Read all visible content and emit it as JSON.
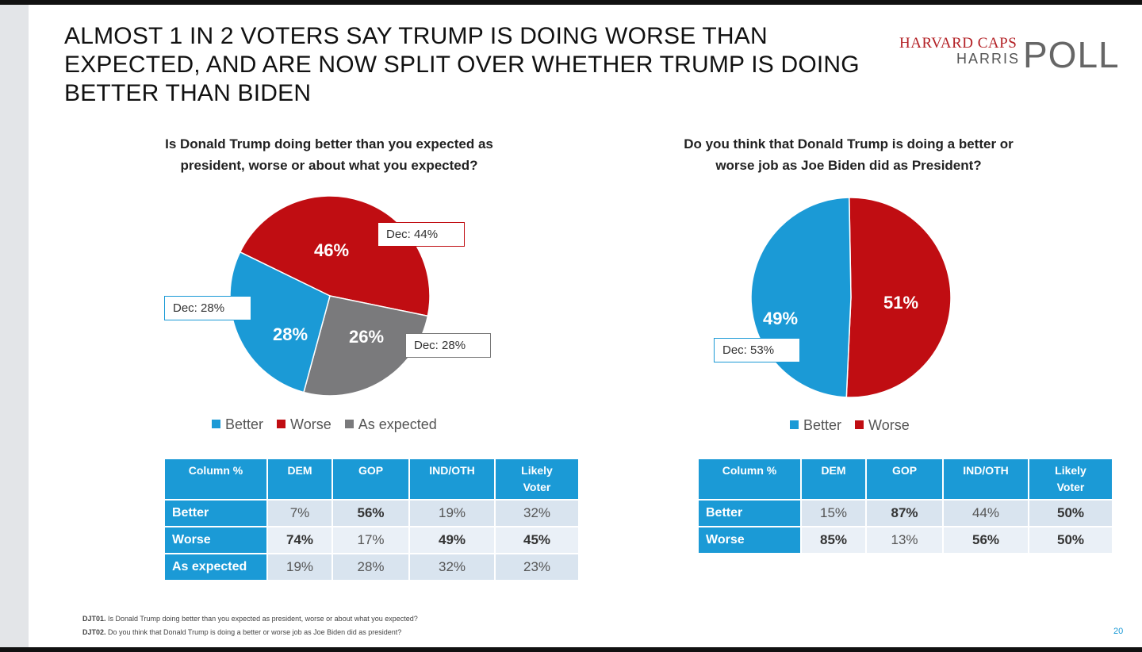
{
  "title_lines": [
    "ALMOST 1 IN 2 VOTERS SAY TRUMP IS DOING WORSE THAN",
    "EXPECTED, AND ARE NOW SPLIT OVER WHETHER TRUMP IS DOING",
    "BETTER THAN BIDEN"
  ],
  "logo": {
    "line1": "HARVARD CAPS",
    "line2": "HARRIS",
    "line3": "POLL"
  },
  "colors": {
    "better": "#1b9ad6",
    "worse": "#c00d12",
    "as_expected": "#7a7a7c",
    "header": "#1b9ad6"
  },
  "chart_data": [
    {
      "type": "pie",
      "title": "Is Donald Trump doing better than you expected as president, worse or about what you expected?",
      "title_lines": [
        "Is Donald Trump doing better than you expected as",
        "president, worse or about what you expected?"
      ],
      "slices": [
        {
          "name": "Worse",
          "value": 46,
          "label": "46%",
          "prior": "Dec: 44%"
        },
        {
          "name": "As expected",
          "value": 26,
          "label": "26%",
          "prior": "Dec: 28%"
        },
        {
          "name": "Better",
          "value": 28,
          "label": "28%",
          "prior": "Dec: 28%"
        }
      ],
      "legend": [
        "Better",
        "Worse",
        "As expected"
      ]
    },
    {
      "type": "pie",
      "title": "Do you think that Donald Trump is doing a better or worse job as Joe Biden did as President?",
      "title_lines": [
        "Do you think that Donald Trump is doing a better or",
        "worse job as Joe Biden did as President?"
      ],
      "slices": [
        {
          "name": "Worse",
          "value": 51,
          "label": "51%"
        },
        {
          "name": "Better",
          "value": 49,
          "label": "49%",
          "prior": "Dec: 53%"
        }
      ],
      "legend": [
        "Better",
        "Worse"
      ]
    },
    {
      "type": "table",
      "columns": [
        "Column %",
        "DEM",
        "GOP",
        "IND/OTH",
        "Likely Voter"
      ],
      "header_lines": [
        [
          "Column %"
        ],
        [
          "DEM"
        ],
        [
          "GOP"
        ],
        [
          "IND/OTH"
        ],
        [
          "Likely",
          "Voter"
        ]
      ],
      "rows": [
        {
          "label": "Better",
          "values": [
            "7%",
            "56%",
            "19%",
            "32%"
          ],
          "bold": [
            false,
            true,
            false,
            false
          ]
        },
        {
          "label": "Worse",
          "values": [
            "74%",
            "17%",
            "49%",
            "45%"
          ],
          "bold": [
            true,
            false,
            true,
            true
          ]
        },
        {
          "label": "As expected",
          "values": [
            "19%",
            "28%",
            "32%",
            "23%"
          ],
          "bold": [
            false,
            false,
            false,
            false
          ]
        }
      ]
    },
    {
      "type": "table",
      "columns": [
        "Column %",
        "DEM",
        "GOP",
        "IND/OTH",
        "Likely Voter"
      ],
      "header_lines": [
        [
          "Column %"
        ],
        [
          "DEM"
        ],
        [
          "GOP"
        ],
        [
          "IND/OTH"
        ],
        [
          "Likely",
          "Voter"
        ]
      ],
      "rows": [
        {
          "label": "Better",
          "values": [
            "15%",
            "87%",
            "44%",
            "50%"
          ],
          "bold": [
            false,
            true,
            false,
            true
          ]
        },
        {
          "label": "Worse",
          "values": [
            "85%",
            "13%",
            "56%",
            "50%"
          ],
          "bold": [
            true,
            false,
            true,
            true
          ]
        }
      ]
    }
  ],
  "footnotes": [
    {
      "code": "DJT01.",
      "text": " Is Donald Trump doing better than you expected as president, worse or about what you expected?"
    },
    {
      "code": "DJT02.",
      "text": " Do you think that Donald Trump is doing a better or worse job as Joe Biden did as president?"
    }
  ],
  "page_number": "20"
}
